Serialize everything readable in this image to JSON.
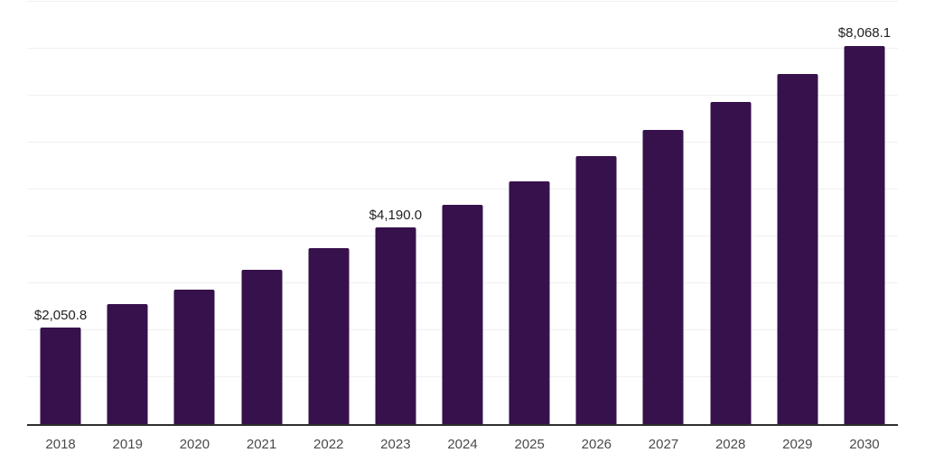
{
  "chart_data": {
    "type": "bar",
    "title": "",
    "xlabel": "",
    "ylabel": "",
    "categories": [
      "2018",
      "2019",
      "2020",
      "2021",
      "2022",
      "2023",
      "2024",
      "2025",
      "2026",
      "2027",
      "2028",
      "2029",
      "2030"
    ],
    "values": [
      2050.8,
      2560,
      2870,
      3290,
      3750,
      4190.0,
      4670,
      5170,
      5710,
      6270,
      6860,
      7460,
      8068.1
    ],
    "data_labels": [
      "$2,050.8",
      null,
      null,
      null,
      null,
      "$4,190.0",
      null,
      null,
      null,
      null,
      null,
      null,
      "$8,068.1"
    ],
    "ylim": [
      0,
      9000
    ],
    "gridline_interval": 1000,
    "grid": true,
    "legend": false,
    "bar_color": "#36114b"
  },
  "colors": {
    "bar": "#36114b",
    "axis_line": "#2e2e2e",
    "gridline": "#f0f0f0",
    "data_label": "#222222",
    "tick_label": "#4a4a4a",
    "background": "#ffffff"
  }
}
